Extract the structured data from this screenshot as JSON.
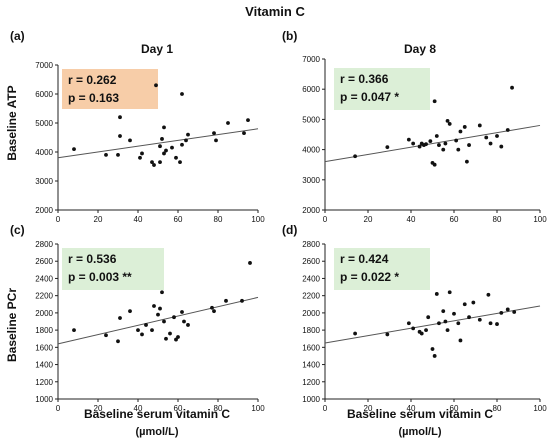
{
  "figure": {
    "title": "Vitamin C",
    "row_ylabels": [
      "Baseline ATP",
      "Baseline PCr"
    ],
    "xlabel_line1": "Baseline serum vitamin C",
    "xlabel_line2": "(µmol/L)"
  },
  "chart_data": [
    {
      "type": "scatter",
      "panel_letter": "(a)",
      "title": "Day 1",
      "xlabel": "Baseline serum vitamin C (µmol/L)",
      "ylabel": "Baseline ATP",
      "xlim": [
        0,
        100
      ],
      "ylim": [
        2000,
        7000
      ],
      "xticks": [
        0,
        20,
        40,
        60,
        80,
        100
      ],
      "yticks": [
        2000,
        3000,
        4000,
        5000,
        6000,
        7000
      ],
      "stats": {
        "r": "r = 0.262",
        "p": "p = 0.163",
        "color": "#f7cda8"
      },
      "trendline": {
        "x": [
          0,
          100
        ],
        "y": [
          3800,
          4800
        ]
      },
      "points": [
        {
          "x": 8,
          "y": 4100
        },
        {
          "x": 24,
          "y": 3900
        },
        {
          "x": 30,
          "y": 3900
        },
        {
          "x": 31,
          "y": 4550
        },
        {
          "x": 31,
          "y": 5200
        },
        {
          "x": 36,
          "y": 4400
        },
        {
          "x": 41,
          "y": 3800
        },
        {
          "x": 42,
          "y": 3950
        },
        {
          "x": 47,
          "y": 3650
        },
        {
          "x": 48,
          "y": 3550
        },
        {
          "x": 49,
          "y": 6300
        },
        {
          "x": 51,
          "y": 3650
        },
        {
          "x": 51,
          "y": 4200
        },
        {
          "x": 52,
          "y": 4450
        },
        {
          "x": 53,
          "y": 3950
        },
        {
          "x": 53,
          "y": 4850
        },
        {
          "x": 54,
          "y": 4050
        },
        {
          "x": 57,
          "y": 4150
        },
        {
          "x": 59,
          "y": 3800
        },
        {
          "x": 61,
          "y": 3650
        },
        {
          "x": 62,
          "y": 4250
        },
        {
          "x": 62,
          "y": 6000
        },
        {
          "x": 64,
          "y": 4400
        },
        {
          "x": 65,
          "y": 4600
        },
        {
          "x": 78,
          "y": 4650
        },
        {
          "x": 79,
          "y": 4400
        },
        {
          "x": 85,
          "y": 5000
        },
        {
          "x": 93,
          "y": 4650
        },
        {
          "x": 95,
          "y": 5100
        }
      ]
    },
    {
      "type": "scatter",
      "panel_letter": "(b)",
      "title": "Day 8",
      "xlabel": "Baseline serum vitamin C (µmol/L)",
      "ylabel": "",
      "xlim": [
        0,
        100
      ],
      "ylim": [
        2000,
        7000
      ],
      "xticks": [
        0,
        20,
        40,
        60,
        80,
        100
      ],
      "yticks": [
        2000,
        3000,
        4000,
        5000,
        6000,
        7000
      ],
      "stats": {
        "r": "r = 0.366",
        "p": "p = 0.047 *",
        "color": "#dcefd7"
      },
      "trendline": {
        "x": [
          0,
          100
        ],
        "y": [
          3600,
          4800
        ]
      },
      "points": [
        {
          "x": 14,
          "y": 3780
        },
        {
          "x": 29,
          "y": 4080
        },
        {
          "x": 39,
          "y": 4330
        },
        {
          "x": 41,
          "y": 4200
        },
        {
          "x": 44,
          "y": 4100
        },
        {
          "x": 45,
          "y": 4200
        },
        {
          "x": 46,
          "y": 4150
        },
        {
          "x": 47,
          "y": 4180
        },
        {
          "x": 49,
          "y": 4280
        },
        {
          "x": 50,
          "y": 3560
        },
        {
          "x": 51,
          "y": 3500
        },
        {
          "x": 51,
          "y": 5600
        },
        {
          "x": 52,
          "y": 4450
        },
        {
          "x": 53,
          "y": 4150
        },
        {
          "x": 55,
          "y": 4000
        },
        {
          "x": 56,
          "y": 4200
        },
        {
          "x": 57,
          "y": 4950
        },
        {
          "x": 58,
          "y": 4850
        },
        {
          "x": 61,
          "y": 4300
        },
        {
          "x": 62,
          "y": 4000
        },
        {
          "x": 63,
          "y": 4600
        },
        {
          "x": 65,
          "y": 4750
        },
        {
          "x": 66,
          "y": 3600
        },
        {
          "x": 67,
          "y": 4150
        },
        {
          "x": 72,
          "y": 4800
        },
        {
          "x": 75,
          "y": 4400
        },
        {
          "x": 77,
          "y": 4200
        },
        {
          "x": 80,
          "y": 4450
        },
        {
          "x": 82,
          "y": 4100
        },
        {
          "x": 85,
          "y": 4650
        },
        {
          "x": 87,
          "y": 6050
        }
      ]
    },
    {
      "type": "scatter",
      "panel_letter": "(c)",
      "title": "",
      "xlabel": "Baseline serum vitamin C (µmol/L)",
      "ylabel": "Baseline PCr",
      "xlim": [
        0,
        100
      ],
      "ylim": [
        1000,
        2800
      ],
      "xticks": [
        0,
        20,
        40,
        60,
        80,
        100
      ],
      "yticks": [
        1000,
        1200,
        1400,
        1600,
        1800,
        2000,
        2200,
        2400,
        2600,
        2800
      ],
      "stats": {
        "r": "r = 0.536",
        "p": "p = 0.003 **",
        "color": "#dcefd7"
      },
      "trendline": {
        "x": [
          0,
          100
        ],
        "y": [
          1640,
          2180
        ]
      },
      "points": [
        {
          "x": 8,
          "y": 1800
        },
        {
          "x": 24,
          "y": 1740
        },
        {
          "x": 30,
          "y": 1670
        },
        {
          "x": 31,
          "y": 1940
        },
        {
          "x": 36,
          "y": 2020
        },
        {
          "x": 40,
          "y": 1800
        },
        {
          "x": 42,
          "y": 1750
        },
        {
          "x": 44,
          "y": 1860
        },
        {
          "x": 47,
          "y": 1800
        },
        {
          "x": 48,
          "y": 2080
        },
        {
          "x": 50,
          "y": 1980
        },
        {
          "x": 51,
          "y": 2050
        },
        {
          "x": 52,
          "y": 2240
        },
        {
          "x": 53,
          "y": 1900
        },
        {
          "x": 54,
          "y": 1700
        },
        {
          "x": 56,
          "y": 1760
        },
        {
          "x": 58,
          "y": 1950
        },
        {
          "x": 59,
          "y": 1690
        },
        {
          "x": 60,
          "y": 1720
        },
        {
          "x": 62,
          "y": 2010
        },
        {
          "x": 63,
          "y": 1900
        },
        {
          "x": 65,
          "y": 1860
        },
        {
          "x": 77,
          "y": 2060
        },
        {
          "x": 78,
          "y": 2020
        },
        {
          "x": 84,
          "y": 2140
        },
        {
          "x": 92,
          "y": 2140
        },
        {
          "x": 96,
          "y": 2580
        }
      ]
    },
    {
      "type": "scatter",
      "panel_letter": "(d)",
      "title": "",
      "xlabel": "Baseline serum vitamin C (µmol/L)",
      "ylabel": "",
      "xlim": [
        0,
        100
      ],
      "ylim": [
        1000,
        2800
      ],
      "xticks": [
        0,
        20,
        40,
        60,
        80,
        100
      ],
      "yticks": [
        1000,
        1200,
        1400,
        1600,
        1800,
        2000,
        2200,
        2400,
        2600,
        2800
      ],
      "stats": {
        "r": "r = 0.424",
        "p": "p = 0.022 *",
        "color": "#dcefd7"
      },
      "trendline": {
        "x": [
          0,
          100
        ],
        "y": [
          1650,
          2080
        ]
      },
      "points": [
        {
          "x": 14,
          "y": 1760
        },
        {
          "x": 29,
          "y": 1750
        },
        {
          "x": 39,
          "y": 1880
        },
        {
          "x": 41,
          "y": 1820
        },
        {
          "x": 44,
          "y": 1780
        },
        {
          "x": 45,
          "y": 1760
        },
        {
          "x": 47,
          "y": 1800
        },
        {
          "x": 48,
          "y": 1950
        },
        {
          "x": 50,
          "y": 1580
        },
        {
          "x": 51,
          "y": 1500
        },
        {
          "x": 52,
          "y": 2220
        },
        {
          "x": 53,
          "y": 1880
        },
        {
          "x": 55,
          "y": 2020
        },
        {
          "x": 56,
          "y": 1900
        },
        {
          "x": 57,
          "y": 1800
        },
        {
          "x": 58,
          "y": 2240
        },
        {
          "x": 60,
          "y": 1990
        },
        {
          "x": 62,
          "y": 1880
        },
        {
          "x": 63,
          "y": 1680
        },
        {
          "x": 65,
          "y": 2100
        },
        {
          "x": 67,
          "y": 1950
        },
        {
          "x": 69,
          "y": 2120
        },
        {
          "x": 72,
          "y": 1920
        },
        {
          "x": 76,
          "y": 2210
        },
        {
          "x": 77,
          "y": 1880
        },
        {
          "x": 80,
          "y": 1870
        },
        {
          "x": 82,
          "y": 2000
        },
        {
          "x": 85,
          "y": 2040
        },
        {
          "x": 88,
          "y": 2010
        }
      ]
    }
  ]
}
